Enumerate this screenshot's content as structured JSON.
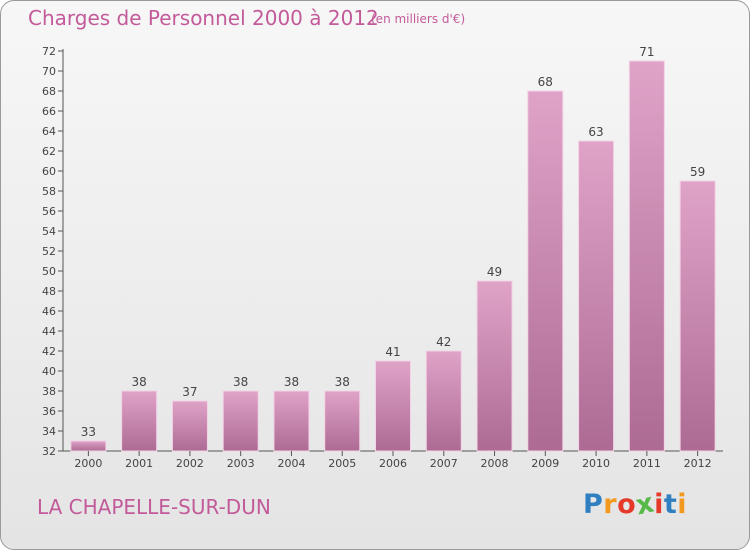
{
  "header": {
    "title": "Charges de Personnel 2000 à 2012",
    "subtitle": "(en milliers d'€)"
  },
  "footer": {
    "commune": "LA CHAPELLE-SUR-DUN",
    "logo_letters": [
      {
        "char": "P",
        "color": "#2f7fc1"
      },
      {
        "char": "r",
        "color": "#f29a1f"
      },
      {
        "char": "o",
        "color": "#e5392a"
      },
      {
        "char": "x",
        "color": "#57b947"
      },
      {
        "char": "i",
        "color": "#e5392a"
      },
      {
        "char": "t",
        "color": "#2f7fc1"
      },
      {
        "char": "i",
        "color": "#f29a1f"
      }
    ]
  },
  "colors": {
    "text_accent": "#c35a9a",
    "bar_light": "#e0a3c8",
    "bar_dark": "#ad6b94"
  },
  "chart_data": {
    "type": "bar",
    "categories": [
      "2000",
      "2001",
      "2002",
      "2003",
      "2004",
      "2005",
      "2006",
      "2007",
      "2008",
      "2009",
      "2010",
      "2011",
      "2012"
    ],
    "values": [
      33,
      38,
      37,
      38,
      38,
      38,
      41,
      42,
      49,
      68,
      63,
      71,
      59
    ],
    "ylim": [
      32,
      72
    ],
    "y_ticks": [
      32,
      34,
      36,
      38,
      40,
      42,
      44,
      46,
      48,
      50,
      52,
      54,
      56,
      58,
      60,
      62,
      64,
      66,
      68,
      70,
      72
    ],
    "grid": false,
    "data_labels": true
  }
}
